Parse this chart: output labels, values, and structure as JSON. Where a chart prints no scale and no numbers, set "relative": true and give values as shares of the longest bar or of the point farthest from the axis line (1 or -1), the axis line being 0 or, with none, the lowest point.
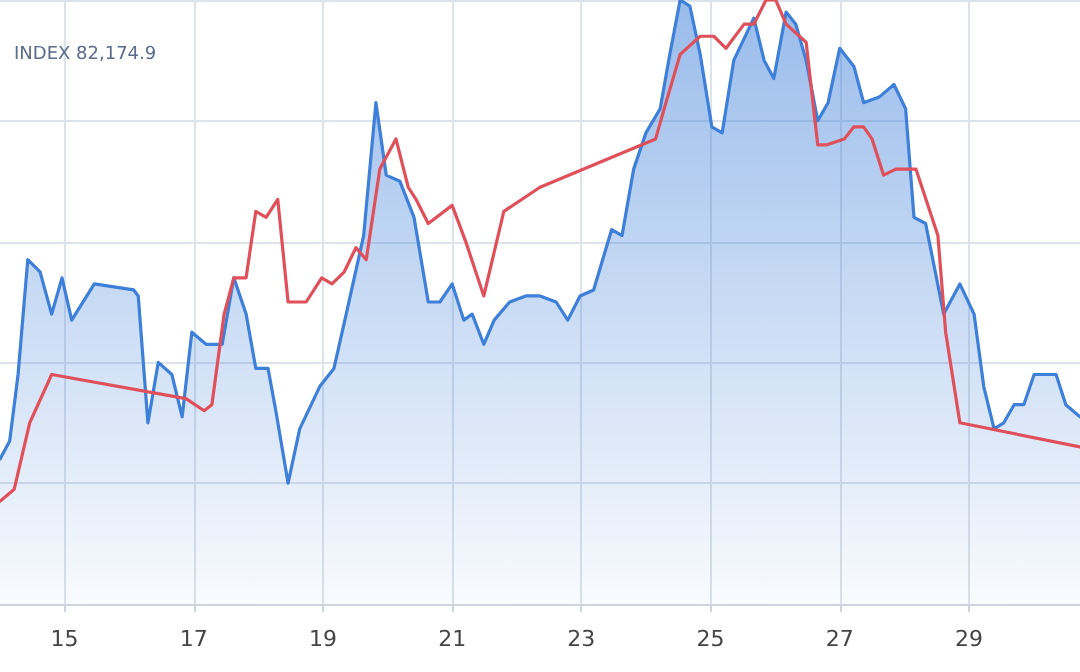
{
  "chart_data": {
    "type": "area",
    "title": "INDEX 82,174.9",
    "relative": true,
    "xlim": [
      14,
      30.72
    ],
    "xticks": [
      15,
      17,
      19,
      21,
      23,
      25,
      27,
      29
    ],
    "grid": true,
    "marker": "none",
    "line_style": "solid",
    "series": [
      {
        "color": "#3d7fd9",
        "x": [
          14.0,
          14.15,
          14.28,
          14.43,
          14.62,
          14.8,
          14.96,
          15.11,
          15.46,
          16.07,
          16.14,
          16.29,
          16.45,
          16.66,
          16.82,
          16.97,
          17.19,
          17.44,
          17.62,
          17.81,
          17.96,
          18.15,
          18.27,
          18.46,
          18.64,
          18.95,
          19.17,
          19.36,
          19.63,
          19.82,
          19.98,
          20.19,
          20.41,
          20.63,
          20.81,
          21.0,
          21.18,
          21.31,
          21.49,
          21.65,
          21.89,
          22.14,
          22.36,
          22.61,
          22.79,
          22.98,
          23.19,
          23.47,
          23.63,
          23.81,
          24.0,
          24.22,
          24.37,
          24.53,
          24.68,
          24.84,
          25.02,
          25.18,
          25.36,
          25.67,
          25.83,
          25.98,
          26.17,
          26.32,
          26.48,
          26.66,
          26.82,
          27.0,
          27.22,
          27.37,
          27.62,
          27.84,
          28.02,
          28.15,
          28.33,
          28.61,
          28.86,
          29.08,
          29.23,
          29.39,
          29.54,
          29.7,
          29.85,
          30.01,
          30.35,
          30.5,
          30.72
        ],
        "values": [
          0.24,
          0.27,
          0.38,
          0.57,
          0.55,
          0.48,
          0.54,
          0.47,
          0.53,
          0.52,
          0.51,
          0.3,
          0.4,
          0.38,
          0.31,
          0.45,
          0.43,
          0.43,
          0.54,
          0.48,
          0.39,
          0.39,
          0.32,
          0.2,
          0.29,
          0.36,
          0.39,
          0.48,
          0.61,
          0.83,
          0.71,
          0.7,
          0.64,
          0.5,
          0.5,
          0.53,
          0.47,
          0.48,
          0.43,
          0.47,
          0.5,
          0.51,
          0.51,
          0.5,
          0.47,
          0.51,
          0.52,
          0.62,
          0.61,
          0.72,
          0.78,
          0.82,
          0.91,
          1.0,
          0.99,
          0.91,
          0.79,
          0.78,
          0.9,
          0.97,
          0.9,
          0.87,
          0.98,
          0.96,
          0.9,
          0.8,
          0.83,
          0.92,
          0.89,
          0.83,
          0.84,
          0.86,
          0.82,
          0.64,
          0.63,
          0.48,
          0.53,
          0.48,
          0.36,
          0.29,
          0.3,
          0.33,
          0.33,
          0.38,
          0.38,
          0.33,
          0.31
        ]
      },
      {
        "type": "line",
        "color": "#e0505a",
        "x": [
          14.0,
          14.22,
          14.46,
          14.8,
          16.88,
          17.16,
          17.28,
          17.47,
          17.62,
          17.81,
          17.96,
          18.12,
          18.3,
          18.46,
          18.74,
          18.98,
          19.14,
          19.33,
          19.51,
          19.67,
          19.88,
          20.13,
          20.32,
          20.44,
          20.63,
          21.0,
          21.21,
          21.49,
          21.8,
          22.36,
          24.15,
          24.31,
          24.53,
          24.84,
          25.05,
          25.24,
          25.52,
          25.67,
          25.86,
          26.01,
          26.17,
          26.48,
          26.66,
          26.79,
          27.07,
          27.22,
          27.37,
          27.5,
          27.68,
          27.87,
          28.18,
          28.52,
          28.64,
          28.86,
          30.72
        ],
        "values": [
          0.17,
          0.19,
          0.3,
          0.38,
          0.34,
          0.32,
          0.33,
          0.48,
          0.54,
          0.54,
          0.65,
          0.64,
          0.67,
          0.5,
          0.5,
          0.54,
          0.53,
          0.55,
          0.59,
          0.57,
          0.72,
          0.77,
          0.69,
          0.67,
          0.63,
          0.66,
          0.6,
          0.51,
          0.65,
          0.69,
          0.77,
          0.83,
          0.91,
          0.94,
          0.94,
          0.92,
          0.96,
          0.96,
          1.0,
          1.0,
          0.96,
          0.93,
          0.76,
          0.76,
          0.77,
          0.79,
          0.79,
          0.77,
          0.71,
          0.72,
          0.72,
          0.61,
          0.45,
          0.3,
          0.26
        ]
      }
    ]
  }
}
